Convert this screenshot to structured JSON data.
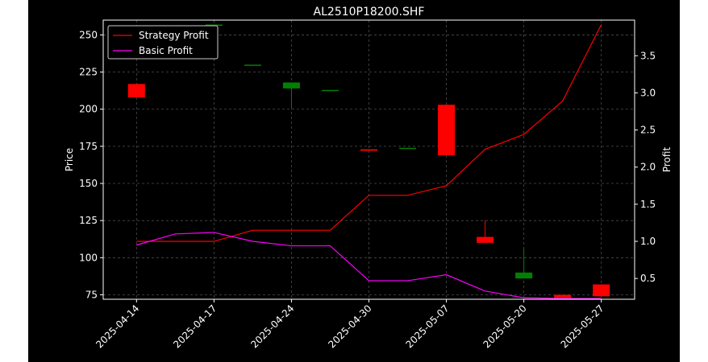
{
  "chart_data": {
    "type": "candlestick+line",
    "title": "AL2510P18200.SHF",
    "xlabel": "",
    "ylabel_left": "Price",
    "ylabel_right": "Profit",
    "ylim_left": [
      72,
      260
    ],
    "ylim_right": [
      0.22,
      3.98
    ],
    "yticks_left": [
      75,
      100,
      125,
      150,
      175,
      200,
      225,
      250
    ],
    "yticks_right": [
      0.5,
      1.0,
      1.5,
      2.0,
      2.5,
      3.0,
      3.5
    ],
    "xtick_labels": [
      "2025-04-14",
      "2025-04-17",
      "2025-04-24",
      "2025-04-30",
      "2025-05-07",
      "2025-05-20",
      "2025-05-27"
    ],
    "xtick_positions": [
      0,
      2,
      4,
      6,
      8,
      10,
      12
    ],
    "grid": true,
    "legend_position": "top-left",
    "colors": {
      "up": "#008000",
      "down": "#ff0000",
      "strategy": "#ff0000",
      "basic": "#ff00ff",
      "axis": "#ffffff",
      "grid": "#808080"
    },
    "candles": [
      {
        "x": 0,
        "open": 217,
        "high": 217,
        "low": 208,
        "close": 208
      },
      {
        "x": 2,
        "open": 257,
        "high": 257,
        "low": 257,
        "close": 257
      },
      {
        "x": 3,
        "open": 230,
        "high": 230,
        "low": 230,
        "close": 230
      },
      {
        "x": 4,
        "open": 214,
        "high": 218,
        "low": 201,
        "close": 218
      },
      {
        "x": 5,
        "open": 213,
        "high": 213,
        "low": 213,
        "close": 213
      },
      {
        "x": 6,
        "open": 173,
        "high": 173,
        "low": 172,
        "close": 172
      },
      {
        "x": 7,
        "open": 174,
        "high": 174,
        "low": 174,
        "close": 174
      },
      {
        "x": 8,
        "open": 203,
        "high": 203,
        "low": 169,
        "close": 169
      },
      {
        "x": 9,
        "open": 114,
        "high": 125,
        "low": 110,
        "close": 110
      },
      {
        "x": 10,
        "open": 86,
        "high": 106,
        "low": 86,
        "close": 90
      },
      {
        "x": 11,
        "open": 75,
        "high": 75,
        "low": 73,
        "close": 73
      },
      {
        "x": 12,
        "open": 82,
        "high": 82,
        "low": 74,
        "close": 74
      }
    ],
    "series": [
      {
        "name": "Strategy Profit",
        "color": "#ff0000",
        "x": [
          0,
          1,
          2,
          3,
          4,
          5,
          6,
          7,
          8,
          9,
          10,
          11,
          12
        ],
        "values": [
          1.0,
          1.0,
          1.0,
          1.15,
          1.15,
          1.15,
          1.62,
          1.62,
          1.75,
          2.24,
          2.44,
          2.89,
          3.92
        ]
      },
      {
        "name": "Basic Profit",
        "color": "#ff00ff",
        "x": [
          0,
          1,
          2,
          3,
          4,
          5,
          6,
          7,
          8,
          9,
          10,
          11,
          12
        ],
        "values": [
          0.95,
          1.1,
          1.12,
          1.0,
          0.94,
          0.94,
          0.47,
          0.47,
          0.55,
          0.33,
          0.24,
          0.23,
          0.23
        ]
      }
    ]
  }
}
